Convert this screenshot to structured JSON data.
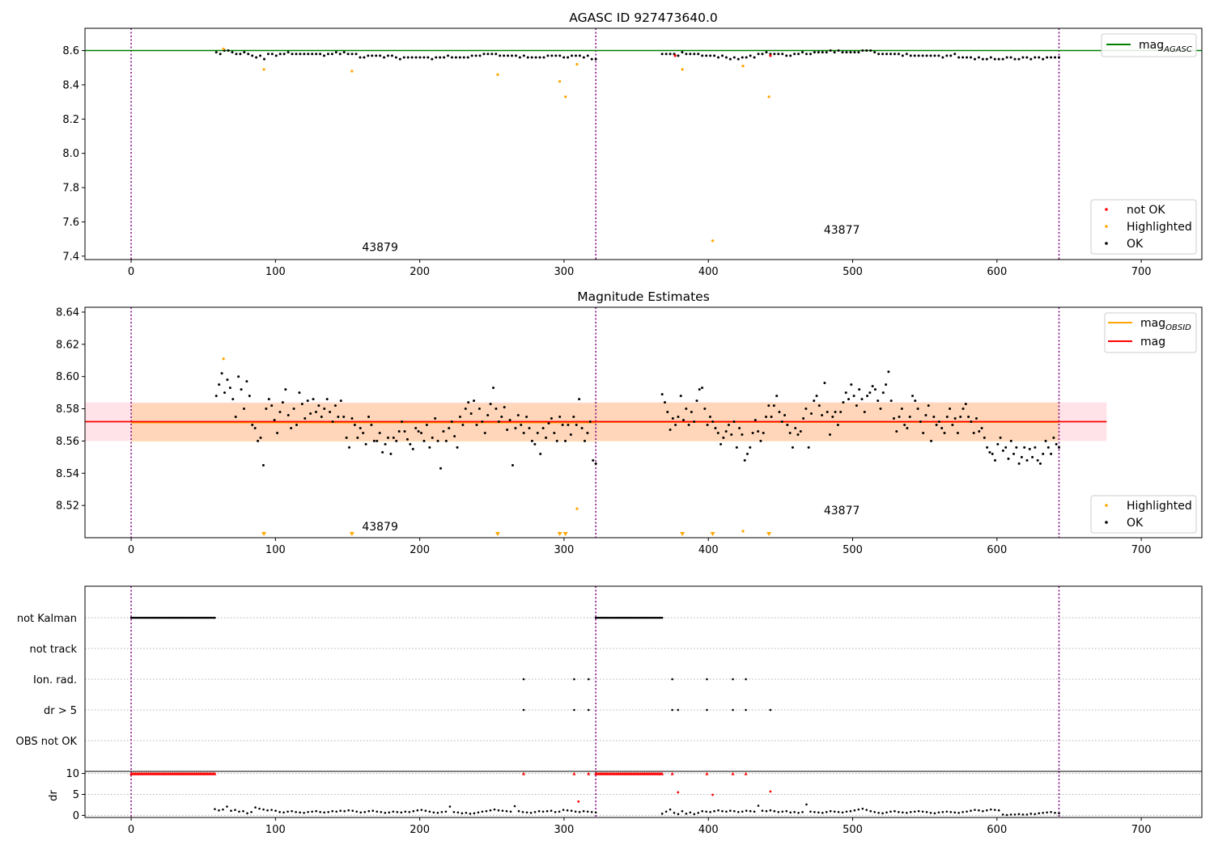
{
  "figure": {
    "background": "#ffffff"
  },
  "colors": {
    "ok": "#000000",
    "highlighted": "#ffa500",
    "not_ok": "#ff0000",
    "mag_agasc": "#008000",
    "mag_obsid": "#ffa500",
    "mag": "#ff0000",
    "obsid_boundary": "#800080",
    "band": "#ffc0cb"
  },
  "chart_data": [
    {
      "type": "scatter",
      "title": "AGASC ID 927473640.0",
      "xlim": [
        -32,
        742
      ],
      "ylim": [
        7.38,
        8.73
      ],
      "xticks": [
        0,
        100,
        200,
        300,
        400,
        500,
        600,
        700
      ],
      "yticks": [
        7.4,
        7.6,
        7.8,
        8.0,
        8.2,
        8.4,
        8.6
      ],
      "ytick_labels": [
        "7.4",
        "7.6",
        "7.8",
        "8.0",
        "8.2",
        "8.4",
        "8.6"
      ],
      "obsid_boundaries": [
        0,
        322,
        643
      ],
      "hlines": [
        {
          "name": "mag_AGASC",
          "value": 8.6,
          "color": "#008000"
        }
      ],
      "obsid_labels": [
        {
          "text": "43879",
          "x": 160,
          "y": 7.43
        },
        {
          "text": "43877",
          "x": 480,
          "y": 7.53
        }
      ],
      "ok_segments": [
        {
          "x_start": 59,
          "x_end": 322,
          "values": [
            8.59,
            8.58,
            8.6,
            8.6,
            8.59,
            8.58,
            8.58,
            8.59,
            8.58,
            8.57,
            8.56,
            8.57,
            8.55,
            8.58,
            8.58,
            8.57,
            8.58,
            8.58,
            8.59,
            8.58,
            8.58,
            8.58,
            8.58,
            8.58,
            8.58,
            8.58,
            8.58,
            8.57,
            8.58,
            8.58,
            8.59,
            8.58,
            8.59,
            8.58,
            8.58,
            8.58,
            8.56,
            8.56,
            8.57,
            8.57,
            8.57,
            8.57,
            8.56,
            8.57,
            8.57,
            8.56,
            8.55,
            8.56,
            8.56,
            8.56,
            8.56,
            8.56,
            8.56,
            8.56,
            8.55,
            8.56,
            8.56,
            8.56,
            8.57,
            8.56,
            8.56,
            8.56,
            8.56,
            8.56,
            8.57,
            8.57,
            8.57,
            8.58,
            8.58,
            8.58,
            8.58,
            8.57,
            8.57,
            8.57,
            8.57,
            8.57,
            8.56,
            8.57,
            8.56,
            8.56,
            8.56,
            8.56,
            8.56,
            8.57,
            8.57,
            8.57,
            8.57,
            8.56,
            8.56,
            8.57,
            8.57,
            8.57,
            8.56,
            8.57,
            8.55,
            8.55
          ]
        },
        {
          "x_start": 368,
          "x_end": 643,
          "values": [
            8.58,
            8.58,
            8.58,
            8.58,
            8.57,
            8.59,
            8.58,
            8.58,
            8.58,
            8.58,
            8.57,
            8.57,
            8.57,
            8.57,
            8.56,
            8.57,
            8.56,
            8.55,
            8.56,
            8.55,
            8.56,
            8.56,
            8.57,
            8.56,
            8.58,
            8.58,
            8.59,
            8.58,
            8.58,
            8.58,
            8.58,
            8.57,
            8.57,
            8.58,
            8.58,
            8.59,
            8.58,
            8.58,
            8.59,
            8.59,
            8.59,
            8.59,
            8.6,
            8.59,
            8.6,
            8.59,
            8.59,
            8.59,
            8.59,
            8.59,
            8.6,
            8.6,
            8.6,
            8.59,
            8.58,
            8.58,
            8.58,
            8.58,
            8.58,
            8.58,
            8.57,
            8.58,
            8.57,
            8.57,
            8.57,
            8.57,
            8.57,
            8.57,
            8.57,
            8.57,
            8.56,
            8.57,
            8.57,
            8.58,
            8.56,
            8.56,
            8.56,
            8.56,
            8.55,
            8.56,
            8.55,
            8.55,
            8.56,
            8.55,
            8.55,
            8.55,
            8.56,
            8.56,
            8.55,
            8.55,
            8.56,
            8.56,
            8.55,
            8.56,
            8.56,
            8.55,
            8.56,
            8.56,
            8.56,
            8.56
          ]
        }
      ],
      "highlighted_points": [
        [
          64,
          8.61
        ],
        [
          92,
          8.49
        ],
        [
          153,
          8.48
        ],
        [
          254,
          8.46
        ],
        [
          297,
          8.42
        ],
        [
          301,
          8.33
        ],
        [
          309,
          8.52
        ],
        [
          382,
          8.49
        ],
        [
          403,
          7.49
        ],
        [
          424,
          8.51
        ],
        [
          442,
          8.33
        ]
      ],
      "not_ok_points": [
        [
          377,
          8.57
        ],
        [
          443,
          8.57
        ]
      ],
      "legend_lines": [
        {
          "label_base": "mag",
          "label_sub": "AGASC",
          "color": "#008000"
        }
      ],
      "legend_markers": [
        {
          "label": "not OK",
          "color": "#ff0000"
        },
        {
          "label": "Highlighted",
          "color": "#ffa500"
        },
        {
          "label": "OK",
          "color": "#000000"
        }
      ]
    },
    {
      "type": "scatter",
      "title": "Magnitude Estimates",
      "xlim": [
        -32,
        742
      ],
      "ylim": [
        8.5,
        8.643
      ],
      "xticks": [
        0,
        100,
        200,
        300,
        400,
        500,
        600,
        700
      ],
      "yticks": [
        8.52,
        8.54,
        8.56,
        8.58,
        8.6,
        8.62,
        8.64
      ],
      "ytick_labels": [
        "8.52",
        "8.54",
        "8.56",
        "8.58",
        "8.60",
        "8.62",
        "8.64"
      ],
      "obsid_boundaries": [
        0,
        322,
        643
      ],
      "mag": {
        "value": 8.572,
        "low": 8.56,
        "high": 8.584,
        "x_start": -32,
        "x_end": 676
      },
      "mag_obsid": [
        {
          "value": 8.5715,
          "low": 8.5595,
          "high": 8.5835,
          "x_start": 0,
          "x_end": 322
        },
        {
          "value": 8.5718,
          "low": 8.5598,
          "high": 8.5838,
          "x_start": 322,
          "x_end": 643
        }
      ],
      "obsid_labels": [
        {
          "text": "43879",
          "x": 160,
          "y": 8.5045
        },
        {
          "text": "43877",
          "x": 480,
          "y": 8.5145
        }
      ],
      "ok_segments": [
        {
          "x_start": 59,
          "x_end": 322,
          "values": [
            8.588,
            8.595,
            8.602,
            8.59,
            8.598,
            8.593,
            8.586,
            8.575,
            8.6,
            8.592,
            8.58,
            8.597,
            8.588,
            8.57,
            8.568,
            8.56,
            8.562,
            8.545,
            8.58,
            8.586,
            8.582,
            8.573,
            8.565,
            8.578,
            8.584,
            8.592,
            8.576,
            8.568,
            8.58,
            8.57,
            8.59,
            8.583,
            8.574,
            8.585,
            8.577,
            8.586,
            8.578,
            8.582,
            8.575,
            8.58,
            8.586,
            8.578,
            8.572,
            8.582,
            8.575,
            8.585,
            8.575,
            8.562,
            8.556,
            8.574,
            8.57,
            8.562,
            8.568,
            8.565,
            8.558,
            8.575,
            8.57,
            8.56,
            8.56,
            8.565,
            8.553,
            8.558,
            8.562,
            8.552,
            8.562,
            8.56,
            8.566,
            8.572,
            8.566,
            8.561,
            8.558,
            8.555,
            8.568,
            8.566,
            8.565,
            8.56,
            8.57,
            8.556,
            8.562,
            8.574,
            8.56,
            8.543,
            8.566,
            8.56,
            8.568,
            8.572,
            8.563,
            8.556,
            8.575,
            8.57,
            8.58,
            8.584,
            8.577,
            8.585,
            8.57,
            8.58,
            8.572,
            8.565,
            8.576,
            8.583,
            8.593,
            8.58,
            8.572,
            8.575,
            8.581,
            8.567,
            8.573,
            8.545,
            8.568,
            8.576,
            8.57,
            8.565,
            8.575,
            8.568,
            8.56,
            8.558,
            8.565,
            8.552,
            8.568,
            8.562,
            8.571,
            8.574,
            8.565,
            8.56,
            8.575,
            8.57,
            8.56,
            8.57,
            8.564,
            8.575,
            8.57,
            8.586,
            8.568,
            8.56,
            8.565,
            8.572,
            8.548,
            8.546
          ]
        },
        {
          "x_start": 368,
          "x_end": 643,
          "values": [
            8.589,
            8.584,
            8.578,
            8.567,
            8.574,
            8.57,
            8.575,
            8.588,
            8.573,
            8.58,
            8.57,
            8.578,
            8.572,
            8.585,
            8.592,
            8.593,
            8.58,
            8.57,
            8.575,
            8.572,
            8.568,
            8.565,
            8.558,
            8.562,
            8.566,
            8.57,
            8.564,
            8.572,
            8.556,
            8.568,
            8.564,
            8.548,
            8.552,
            8.556,
            8.565,
            8.573,
            8.566,
            8.56,
            8.565,
            8.575,
            8.582,
            8.575,
            8.582,
            8.588,
            8.578,
            8.572,
            8.576,
            8.57,
            8.565,
            8.556,
            8.568,
            8.564,
            8.566,
            8.574,
            8.58,
            8.556,
            8.577,
            8.585,
            8.588,
            8.582,
            8.576,
            8.596,
            8.578,
            8.564,
            8.575,
            8.578,
            8.57,
            8.578,
            8.584,
            8.59,
            8.586,
            8.595,
            8.588,
            8.582,
            8.592,
            8.586,
            8.578,
            8.588,
            8.59,
            8.594,
            8.592,
            8.585,
            8.58,
            8.59,
            8.595,
            8.603,
            8.585,
            8.574,
            8.566,
            8.575,
            8.58,
            8.57,
            8.568,
            8.575,
            8.588,
            8.585,
            8.58,
            8.572,
            8.565,
            8.576,
            8.582,
            8.56,
            8.575,
            8.57,
            8.572,
            8.568,
            8.565,
            8.575,
            8.58,
            8.57,
            8.574,
            8.565,
            8.575,
            8.58,
            8.583,
            8.575,
            8.572,
            8.565,
            8.574,
            8.566,
            8.568,
            8.562,
            8.556,
            8.553,
            8.552,
            8.548,
            8.558,
            8.562,
            8.554,
            8.556,
            8.549,
            8.56,
            8.552,
            8.556,
            8.546,
            8.55,
            8.556,
            8.548,
            8.555,
            8.55,
            8.556,
            8.548,
            8.546,
            8.552,
            8.56,
            8.556,
            8.552,
            8.562,
            8.558,
            8.556
          ]
        }
      ],
      "highlighted_points": [
        [
          64,
          8.611
        ],
        [
          309,
          8.518
        ],
        [
          424,
          8.504
        ]
      ],
      "highlighted_markers_below_axis": [
        92,
        153,
        254,
        297,
        301,
        382,
        403,
        442
      ],
      "legend_lines": [
        {
          "label_base": "mag",
          "label_sub": "OBSID",
          "color": "#ffa500"
        },
        {
          "label_base": "mag",
          "label_sub": "",
          "color": "#ff0000"
        }
      ],
      "legend_markers": [
        {
          "label": "Highlighted",
          "color": "#ffa500"
        },
        {
          "label": "OK",
          "color": "#000000"
        }
      ]
    },
    {
      "type": "scatter",
      "title": "",
      "xlim": [
        -32,
        742
      ],
      "categories": [
        "not Kalman",
        "not track",
        "Ion. rad.",
        "dr > 5",
        "OBS not OK"
      ],
      "obsid_boundaries": [
        0,
        322,
        643
      ],
      "flag_runs": [
        {
          "category": "not Kalman",
          "x_start": 0,
          "x_end": 58
        },
        {
          "category": "not Kalman",
          "x_start": 322,
          "x_end": 368
        }
      ],
      "flag_points": [
        {
          "category": "Ion. rad.",
          "x": [
            272,
            307,
            317,
            375,
            399,
            417,
            426
          ]
        },
        {
          "category": "dr > 5",
          "x": [
            272,
            307,
            317,
            375,
            379,
            399,
            417,
            426,
            443
          ]
        }
      ]
    },
    {
      "type": "scatter",
      "title": "",
      "ylabel": "dr",
      "xlim": [
        -32,
        742
      ],
      "ylim": [
        -0.5,
        10.5
      ],
      "xticks": [
        0,
        100,
        200,
        300,
        400,
        500,
        600,
        700
      ],
      "yticks": [
        0,
        5,
        10
      ],
      "ytick_labels": [
        "0",
        "5",
        "10"
      ],
      "obsid_boundaries": [
        0,
        322,
        643
      ],
      "capped_runs": [
        {
          "x_start": 0,
          "x_end": 58,
          "value": 10
        },
        {
          "x_start": 322,
          "x_end": 368,
          "value": 10
        }
      ],
      "capped_points": [
        272,
        307,
        317,
        375,
        399,
        417,
        426
      ],
      "not_ok_points": [
        [
          379,
          5.5
        ],
        [
          403,
          4.9
        ],
        [
          443,
          5.7
        ],
        [
          310,
          3.3
        ]
      ],
      "ok_segments": [
        {
          "x_start": 58,
          "x_end": 322,
          "values": [
            1.5,
            1.2,
            1.4,
            2.1,
            1.1,
            1.3,
            0.9,
            1.0,
            0.5,
            0.8,
            1.9,
            1.6,
            1.4,
            1.2,
            1.3,
            1.1,
            0.8,
            0.7,
            0.9,
            1.0,
            0.8,
            0.7,
            0.6,
            0.8,
            0.9,
            1.0,
            0.8,
            0.7,
            0.8,
            1.0,
            0.9,
            1.1,
            1.0,
            1.2,
            1.1,
            0.9,
            0.7,
            0.8,
            1.0,
            1.1,
            0.9,
            0.8,
            0.6,
            0.7,
            0.9,
            0.8,
            0.7,
            0.9,
            0.8,
            1.0,
            1.2,
            1.3,
            1.1,
            0.9,
            0.7,
            0.6,
            0.8,
            0.9,
            2.1,
            0.8,
            0.7,
            0.5,
            0.6,
            0.4,
            0.5,
            0.7,
            0.9,
            1.0,
            1.2,
            1.4,
            1.2,
            1.1,
            1.0,
            0.9,
            2.2,
            1.0,
            0.8,
            0.7,
            0.6,
            0.8,
            1.0,
            0.9,
            1.0,
            1.1,
            0.8,
            0.9,
            1.3,
            1.2,
            1.1,
            0.9,
            0.8,
            1.0,
            0.9,
            0.8,
            0.7
          ]
        },
        {
          "x_start": 368,
          "x_end": 643,
          "values": [
            0.4,
            0.9,
            1.4,
            0.6,
            0.3,
            1.0,
            0.4,
            0.7,
            0.3,
            0.6,
            1.0,
            0.9,
            0.8,
            1.0,
            1.2,
            1.0,
            0.9,
            1.1,
            1.0,
            0.8,
            0.9,
            1.1,
            1.0,
            0.9,
            2.3,
            1.1,
            1.0,
            1.2,
            1.0,
            0.8,
            0.9,
            1.0,
            0.7,
            0.8,
            0.6,
            0.8,
            2.6,
            0.9,
            0.8,
            0.7,
            0.6,
            0.8,
            1.0,
            0.9,
            0.8,
            0.7,
            0.9,
            1.0,
            1.2,
            1.4,
            1.6,
            1.3,
            1.0,
            0.8,
            0.6,
            0.5,
            0.7,
            0.9,
            1.0,
            0.8,
            0.7,
            0.6,
            0.8,
            0.9,
            1.0,
            0.9,
            0.8,
            0.6,
            0.5,
            0.7,
            0.8,
            0.9,
            0.8,
            0.7,
            0.6,
            0.8,
            0.9,
            1.1,
            1.3,
            1.2,
            1.0,
            1.2,
            1.4,
            1.3,
            1.2,
            0.2,
            0.1,
            0.2,
            0.2,
            0.3,
            0.2,
            0.2,
            0.4,
            0.3,
            0.5,
            0.6,
            0.7,
            0.8,
            0.6,
            0.5
          ]
        }
      ]
    }
  ]
}
